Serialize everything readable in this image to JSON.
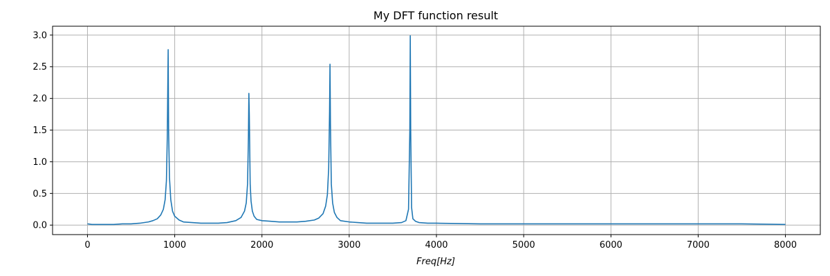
{
  "chart_data": {
    "type": "line",
    "title": "My DFT function result",
    "xlabel": "Freq[Hz]",
    "ylabel": "",
    "xlim": [
      -400,
      8400
    ],
    "ylim": [
      -0.15,
      3.14
    ],
    "xticks": [
      0,
      1000,
      2000,
      3000,
      4000,
      5000,
      6000,
      7000,
      8000
    ],
    "xtick_labels": [
      "0",
      "1000",
      "2000",
      "3000",
      "4000",
      "5000",
      "6000",
      "7000",
      "8000"
    ],
    "yticks": [
      0.0,
      0.5,
      1.0,
      1.5,
      2.0,
      2.5,
      3.0
    ],
    "ytick_labels": [
      "0.0",
      "0.5",
      "1.0",
      "1.5",
      "2.0",
      "2.5",
      "3.0"
    ],
    "grid": true,
    "series": [
      {
        "color": "#1f77b4",
        "x": [
          0,
          50,
          100,
          200,
          300,
          400,
          500,
          600,
          700,
          750,
          800,
          840,
          870,
          890,
          905,
          915,
          925,
          930,
          940,
          955,
          975,
          1000,
          1050,
          1100,
          1200,
          1300,
          1400,
          1500,
          1600,
          1700,
          1760,
          1800,
          1820,
          1835,
          1845,
          1850,
          1855,
          1865,
          1875,
          1890,
          1910,
          1940,
          2000,
          2100,
          2200,
          2300,
          2400,
          2500,
          2600,
          2650,
          2700,
          2730,
          2750,
          2765,
          2775,
          2780,
          2785,
          2795,
          2810,
          2830,
          2860,
          2900,
          3000,
          3100,
          3200,
          3300,
          3400,
          3500,
          3600,
          3650,
          3680,
          3695,
          3700,
          3705,
          3715,
          3730,
          3760,
          3800,
          3900,
          4000,
          4500,
          5000,
          5500,
          6000,
          6500,
          7000,
          7500,
          8000
        ],
        "y": [
          0.02,
          0.01,
          0.01,
          0.01,
          0.01,
          0.02,
          0.02,
          0.03,
          0.05,
          0.07,
          0.1,
          0.16,
          0.25,
          0.4,
          0.7,
          1.4,
          2.77,
          1.5,
          0.75,
          0.4,
          0.22,
          0.14,
          0.08,
          0.05,
          0.04,
          0.03,
          0.03,
          0.03,
          0.04,
          0.07,
          0.12,
          0.22,
          0.35,
          0.65,
          1.4,
          2.08,
          1.75,
          0.65,
          0.38,
          0.22,
          0.14,
          0.09,
          0.07,
          0.06,
          0.05,
          0.05,
          0.05,
          0.06,
          0.08,
          0.11,
          0.18,
          0.3,
          0.48,
          0.9,
          1.8,
          2.54,
          1.6,
          0.65,
          0.35,
          0.2,
          0.12,
          0.07,
          0.05,
          0.04,
          0.03,
          0.03,
          0.03,
          0.03,
          0.04,
          0.07,
          0.25,
          1.5,
          2.99,
          1.5,
          0.28,
          0.1,
          0.06,
          0.04,
          0.03,
          0.03,
          0.02,
          0.02,
          0.02,
          0.02,
          0.02,
          0.02,
          0.02,
          0.01
        ]
      }
    ]
  }
}
